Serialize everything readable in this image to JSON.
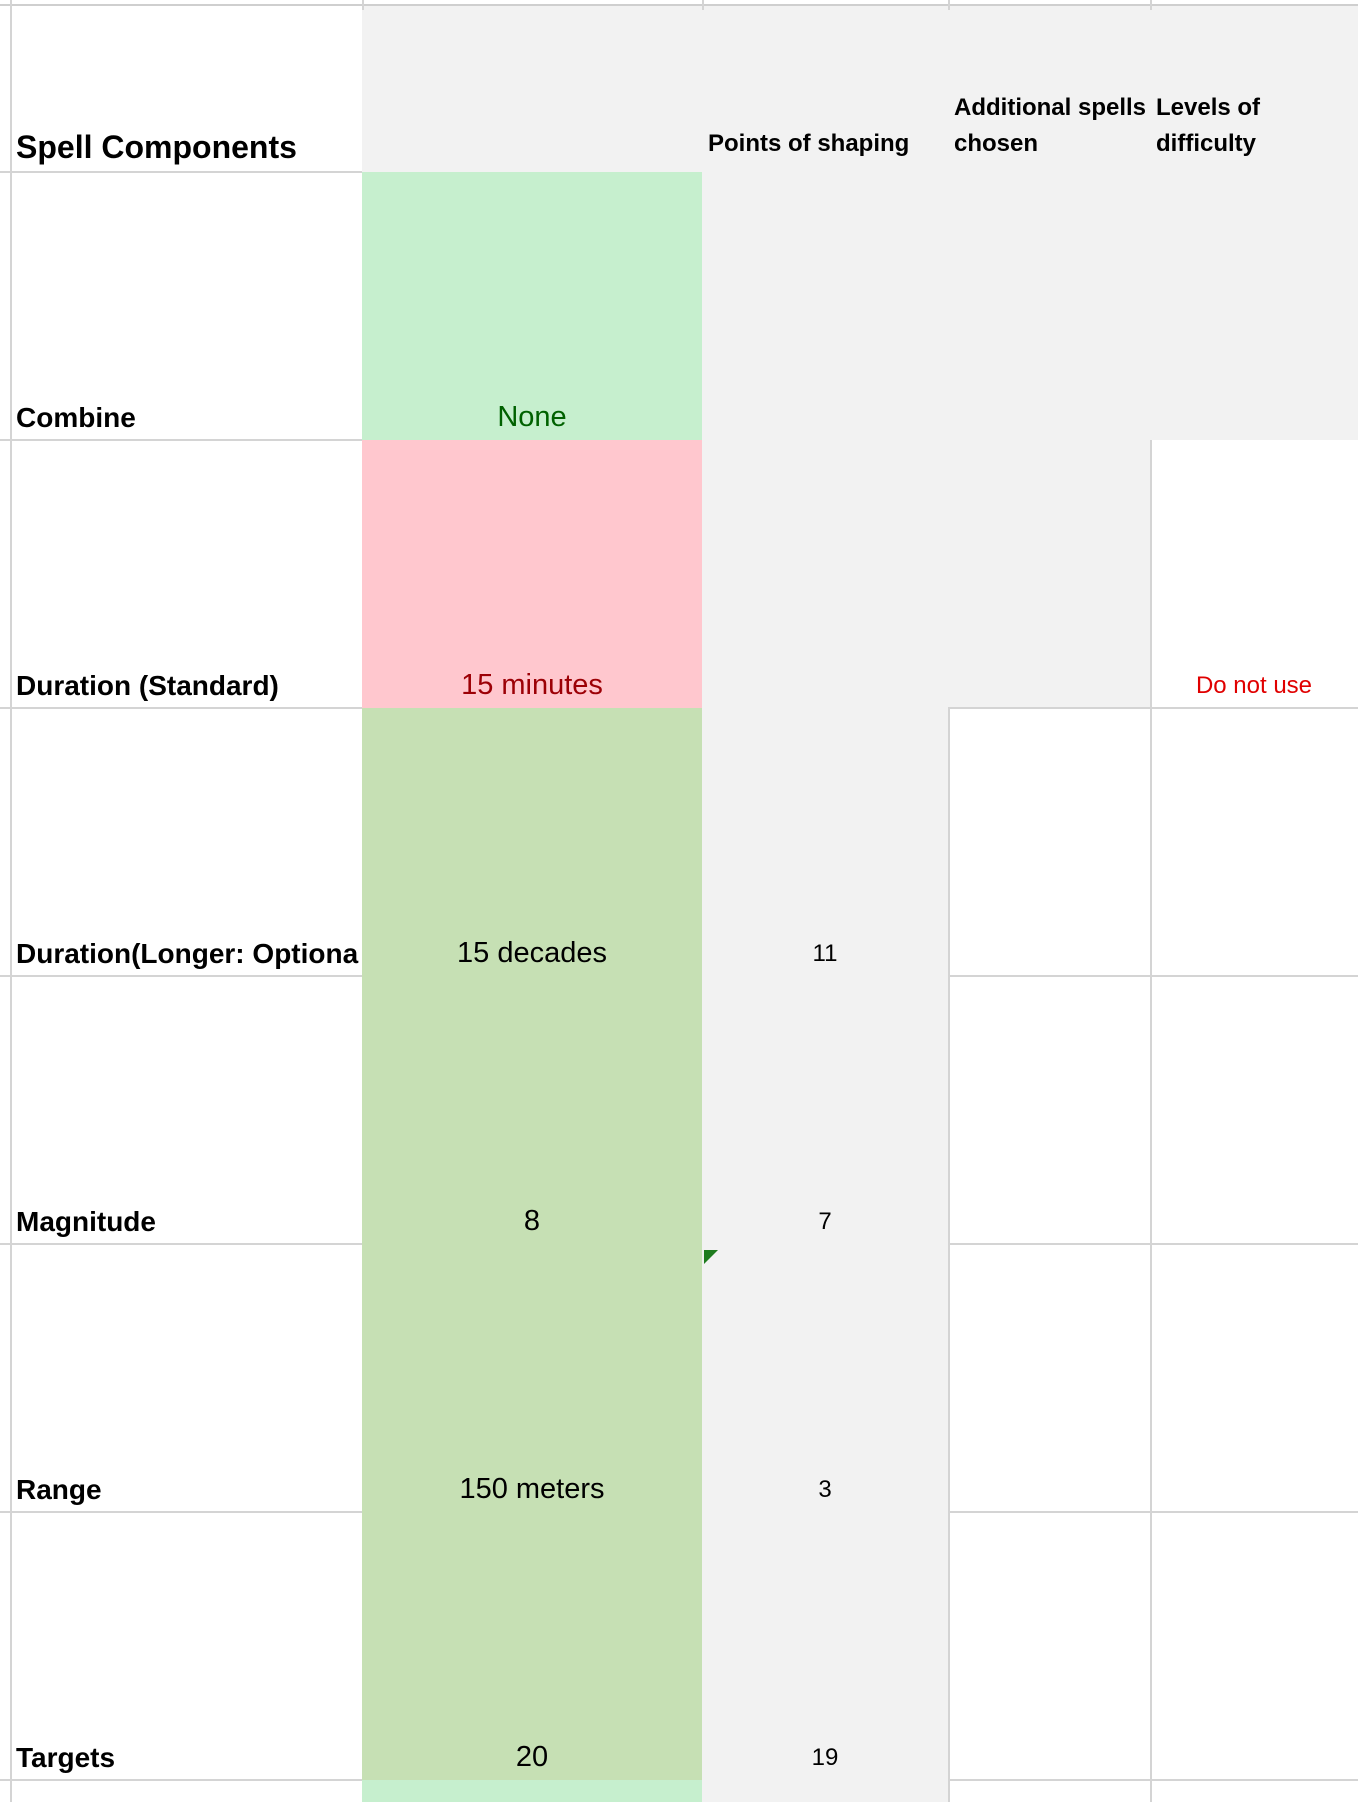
{
  "header": {
    "title": "Spell Components",
    "points_col": "Points of shaping",
    "additional_col": "Additional spells chosen",
    "difficulty_col": "Levels of difficulty"
  },
  "rows": [
    {
      "label": "Combine",
      "value": "None",
      "points": "",
      "additional": "",
      "difficulty": ""
    },
    {
      "label": "Duration (Standard)",
      "value": "15 minutes",
      "points": "",
      "additional": "",
      "difficulty": "Do not use"
    },
    {
      "label": "Duration(Longer: Optiona",
      "value": "15 decades",
      "points": "11",
      "additional": "",
      "difficulty": ""
    },
    {
      "label": "Magnitude",
      "value": "8",
      "points": "7",
      "additional": "",
      "difficulty": ""
    },
    {
      "label": "Range",
      "value": "150 meters",
      "points": "3",
      "additional": "",
      "difficulty": ""
    },
    {
      "label": "Targets",
      "value": "20",
      "points": "19",
      "additional": "",
      "difficulty": ""
    }
  ],
  "colors": {
    "gray_fill": "#f2f2f2",
    "good_fill": "#c6efce",
    "bad_fill": "#ffc7ce",
    "neutral_fill": "#c6e0b4",
    "good_text": "#006100",
    "bad_text": "#9c0006",
    "warning_text": "#e00000"
  }
}
